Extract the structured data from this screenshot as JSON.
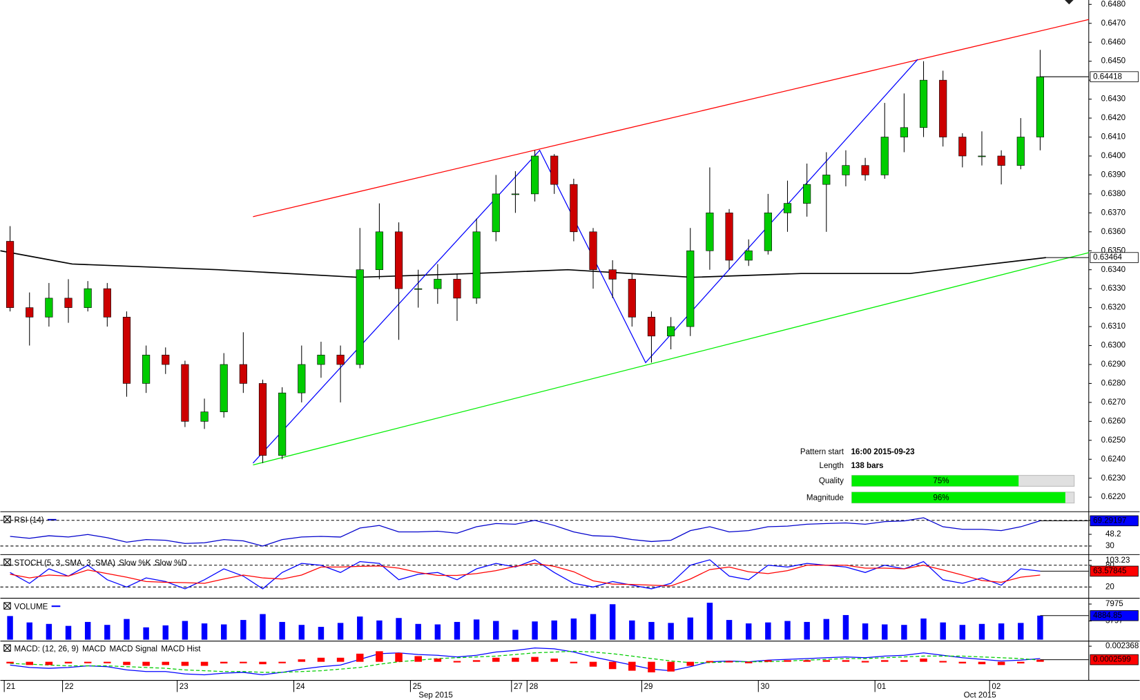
{
  "chart_data": [
    {
      "type": "candlestick",
      "up_color": "#00cc00",
      "down_color": "#cc0000",
      "xlim": [
        0,
        56
      ],
      "ylim": [
        0.62127,
        0.64823
      ],
      "yticks": [
        {
          "value": 0.622,
          "label": "0.6220"
        },
        {
          "value": 0.623,
          "label": "0.6230"
        },
        {
          "value": 0.624,
          "label": "0.6240"
        },
        {
          "value": 0.625,
          "label": "0.6250"
        },
        {
          "value": 0.626,
          "label": "0.6260"
        },
        {
          "value": 0.627,
          "label": "0.6270"
        },
        {
          "value": 0.628,
          "label": "0.6280"
        },
        {
          "value": 0.629,
          "label": "0.6290"
        },
        {
          "value": 0.63,
          "label": "0.6300"
        },
        {
          "value": 0.631,
          "label": "0.6310"
        },
        {
          "value": 0.632,
          "label": "0.6320"
        },
        {
          "value": 0.633,
          "label": "0.6330"
        },
        {
          "value": 0.634,
          "label": "0.6340"
        },
        {
          "value": 0.635,
          "label": "0.6350"
        },
        {
          "value": 0.636,
          "label": "0.6360"
        },
        {
          "value": 0.637,
          "label": "0.6370"
        },
        {
          "value": 0.638,
          "label": "0.6380"
        },
        {
          "value": 0.639,
          "label": "0.6390"
        },
        {
          "value": 0.64,
          "label": "0.6400"
        },
        {
          "value": 0.641,
          "label": "0.6410"
        },
        {
          "value": 0.642,
          "label": "0.6420"
        },
        {
          "value": 0.643,
          "label": "0.6430"
        },
        {
          "value": 0.644,
          "label": "0.6440"
        },
        {
          "value": 0.645,
          "label": "0.6450"
        },
        {
          "value": 0.646,
          "label": "0.6460"
        },
        {
          "value": 0.647,
          "label": "0.6470"
        },
        {
          "value": 0.648,
          "label": "0.6480"
        }
      ],
      "xticks": [
        {
          "value": 0.2,
          "label": "21"
        },
        {
          "value": 3.2,
          "label": "22"
        },
        {
          "value": 9.1,
          "label": "23"
        },
        {
          "value": 15.1,
          "label": "24"
        },
        {
          "value": 21.1,
          "label": "25"
        },
        {
          "value": 26.3,
          "label": "27"
        },
        {
          "value": 27.1,
          "label": "28"
        },
        {
          "value": 33.0,
          "label": "29"
        },
        {
          "value": 39.0,
          "label": "30"
        },
        {
          "value": 45.0,
          "label": "01"
        },
        {
          "value": 50.9,
          "label": "02"
        }
      ],
      "month_labels": [
        {
          "value": 22.4,
          "label": "Sep 2015"
        },
        {
          "value": 50.4,
          "label": "Oct 2015"
        }
      ],
      "open": [
        0.6355,
        0.632,
        0.6315,
        0.6325,
        0.632,
        0.633,
        0.6315,
        0.628,
        0.6295,
        0.629,
        0.626,
        0.6265,
        0.629,
        0.628,
        0.6242,
        0.6275,
        0.629,
        0.6295,
        0.629,
        0.634,
        0.636,
        0.633,
        0.633,
        0.6335,
        0.6325,
        0.636,
        0.638,
        0.638,
        0.64,
        0.6385,
        0.636,
        0.634,
        0.6335,
        0.6315,
        0.6305,
        0.631,
        0.635,
        0.637,
        0.6345,
        0.635,
        0.637,
        0.6375,
        0.6385,
        0.639,
        0.6395,
        0.639,
        0.641,
        0.6415,
        0.644,
        0.641,
        0.64,
        0.64,
        0.6395,
        0.641
      ],
      "high": [
        0.6363,
        0.6328,
        0.6333,
        0.6335,
        0.6334,
        0.6333,
        0.6318,
        0.63,
        0.6299,
        0.6292,
        0.6272,
        0.6296,
        0.6307,
        0.6282,
        0.6278,
        0.63,
        0.6302,
        0.63,
        0.6362,
        0.6375,
        0.6365,
        0.634,
        0.6343,
        0.6338,
        0.6367,
        0.639,
        0.6392,
        0.6403,
        0.6401,
        0.6388,
        0.6362,
        0.6345,
        0.6338,
        0.6318,
        0.6315,
        0.6362,
        0.6394,
        0.6372,
        0.6356,
        0.638,
        0.6387,
        0.6396,
        0.6402,
        0.6403,
        0.6399,
        0.6428,
        0.6433,
        0.645,
        0.6445,
        0.6412,
        0.6413,
        0.6403,
        0.642,
        0.6456
      ],
      "low": [
        0.6318,
        0.63,
        0.631,
        0.6312,
        0.6318,
        0.631,
        0.6273,
        0.6275,
        0.6285,
        0.6257,
        0.6256,
        0.6262,
        0.6275,
        0.6238,
        0.624,
        0.627,
        0.6283,
        0.627,
        0.6288,
        0.6335,
        0.6303,
        0.632,
        0.6322,
        0.6313,
        0.6322,
        0.6355,
        0.637,
        0.6376,
        0.638,
        0.6355,
        0.633,
        0.6325,
        0.631,
        0.6291,
        0.6298,
        0.6305,
        0.634,
        0.634,
        0.6342,
        0.6348,
        0.636,
        0.6368,
        0.636,
        0.6384,
        0.6387,
        0.6388,
        0.6402,
        0.641,
        0.6405,
        0.6394,
        0.6395,
        0.6385,
        0.6393,
        0.6403
      ],
      "close": [
        0.632,
        0.6315,
        0.6325,
        0.632,
        0.633,
        0.6315,
        0.628,
        0.6295,
        0.629,
        0.626,
        0.6265,
        0.629,
        0.628,
        0.6242,
        0.6275,
        0.629,
        0.6295,
        0.629,
        0.634,
        0.636,
        0.633,
        0.633,
        0.6335,
        0.6325,
        0.636,
        0.638,
        0.638,
        0.64,
        0.6385,
        0.636,
        0.634,
        0.6335,
        0.6315,
        0.6305,
        0.631,
        0.635,
        0.637,
        0.6345,
        0.635,
        0.637,
        0.6375,
        0.6385,
        0.639,
        0.6395,
        0.639,
        0.641,
        0.6415,
        0.644,
        0.641,
        0.64,
        0.64,
        0.6395,
        0.641,
        0.64418
      ],
      "ma": {
        "color": "#000000",
        "x": [
          0,
          3.7,
          11.2,
          18.4,
          24.3,
          29.2,
          35.6,
          41.2,
          46.8,
          53.8
        ],
        "values": [
          0.635,
          0.6343,
          0.634,
          0.6336,
          0.6338,
          0.634,
          0.6336,
          0.6338,
          0.6338,
          0.63464
        ]
      },
      "lines": [
        {
          "color": "#ff0000",
          "x": [
            13,
            56
          ],
          "values": [
            0.6368,
            0.6472
          ]
        },
        {
          "color": "#00ee00",
          "x": [
            13,
            56
          ],
          "values": [
            0.6237,
            0.6349
          ]
        },
        {
          "color": "#0000ff",
          "x": [
            13,
            27.75,
            33.2,
            47.2
          ],
          "values": [
            0.6238,
            0.6403,
            0.6291,
            0.6451
          ]
        }
      ],
      "pattern": {
        "fields": [
          {
            "label": "Pattern start",
            "value": "16:00 2015-09-23"
          },
          {
            "label": "Length",
            "value": "138 bars"
          }
        ],
        "xlim": [
          0,
          100
        ],
        "bars": [
          {
            "label": "Quality",
            "value": 75,
            "value_label": "75%"
          },
          {
            "label": "Magnitude",
            "value": 96,
            "value_label": "96%"
          }
        ]
      }
    },
    {
      "type": "line",
      "title": "RSI (14)",
      "color": "#0000cc",
      "ylim": [
        20,
        80
      ],
      "yticks": [
        30,
        48.2,
        70
      ],
      "levels": [
        30,
        70
      ],
      "values": [
        45,
        42,
        46,
        44,
        48,
        43,
        36,
        40,
        39,
        34,
        35,
        40,
        38,
        30,
        40,
        44,
        45,
        44,
        58,
        62,
        52,
        52,
        53,
        50,
        60,
        65,
        64,
        70,
        62,
        52,
        46,
        45,
        40,
        37,
        39,
        54,
        60,
        52,
        54,
        60,
        61,
        64,
        65,
        66,
        64,
        68,
        69,
        74,
        60,
        56,
        56,
        54,
        60,
        69.29197
      ]
    },
    {
      "type": "line",
      "title": "STOCH (5, 3, SMA, 3, SMA)",
      "ylim": [
        -5,
        103.23
      ],
      "yticks": [
        20,
        80,
        103.23
      ],
      "levels": [
        20,
        80
      ],
      "series": [
        {
          "name": "Slow %K",
          "color": "#0000ff",
          "values": [
            60,
            30,
            70,
            50,
            80,
            40,
            20,
            45,
            35,
            15,
            40,
            70,
            50,
            15,
            60,
            85,
            80,
            60,
            90,
            85,
            40,
            55,
            60,
            40,
            70,
            85,
            75,
            95,
            60,
            30,
            20,
            35,
            25,
            15,
            30,
            80,
            95,
            50,
            40,
            80,
            75,
            85,
            80,
            75,
            60,
            80,
            70,
            90,
            40,
            30,
            45,
            25,
            70,
            63.57845
          ]
        },
        {
          "name": "Slow %D",
          "color": "#ff0000",
          "values": [
            55,
            45,
            53,
            50,
            67,
            57,
            47,
            35,
            33,
            32,
            30,
            42,
            53,
            45,
            42,
            53,
            75,
            75,
            77,
            78,
            72,
            60,
            52,
            52,
            57,
            65,
            77,
            85,
            77,
            62,
            37,
            28,
            27,
            25,
            23,
            42,
            68,
            75,
            62,
            57,
            65,
            80,
            80,
            80,
            72,
            72,
            70,
            80,
            67,
            53,
            38,
            33,
            47,
            53
          ]
        }
      ]
    },
    {
      "type": "bar",
      "title": "VOLUME",
      "color": "#0000ff",
      "ylim": [
        0,
        7975
      ],
      "yticks": [
        3797,
        7975
      ],
      "values": [
        4800,
        3500,
        3200,
        2800,
        3600,
        3000,
        4200,
        2500,
        2900,
        3800,
        3300,
        3100,
        4000,
        5200,
        3600,
        3000,
        2600,
        3400,
        4700,
        3900,
        4400,
        3200,
        3100,
        3600,
        4100,
        3800,
        2000,
        3700,
        3900,
        4300,
        5200,
        7200,
        3900,
        3600,
        3400,
        4500,
        7500,
        4000,
        3300,
        3500,
        3800,
        3600,
        4200,
        5000,
        3300,
        3100,
        3000,
        4300,
        3500,
        3000,
        3200,
        3300,
        3400,
        4884.85
      ]
    },
    {
      "type": "line",
      "title": "MACD: (12, 26, 9)",
      "ylim": [
        -0.0022,
        0.002368
      ],
      "yticks": [
        0.002368
      ],
      "series": [
        {
          "name": "MACD",
          "color": "#0000ff",
          "values": [
            -0.0004,
            -0.0007,
            -0.0008,
            -0.0007,
            -0.0005,
            -0.0006,
            -0.001,
            -0.0012,
            -0.0012,
            -0.0015,
            -0.0016,
            -0.0014,
            -0.0013,
            -0.0016,
            -0.0013,
            -0.0009,
            -0.0006,
            -0.0004,
            0.0003,
            0.001,
            0.0011,
            0.0009,
            0.0008,
            0.0006,
            0.0008,
            0.0012,
            0.0014,
            0.0017,
            0.0016,
            0.0012,
            0.0006,
            0.0001,
            -0.0004,
            -0.0009,
            -0.0011,
            -0.0006,
            0.0,
            0.0001,
            0.0,
            0.0002,
            0.0003,
            0.0004,
            0.0005,
            0.0006,
            0.0005,
            0.0007,
            0.0008,
            0.0011,
            0.0008,
            0.0005,
            0.0003,
            0.0001,
            0.0002,
            0.0004
          ]
        },
        {
          "name": "MACD Signal",
          "color": "#00cc00",
          "dash": true,
          "values": [
            -0.0002,
            -0.0003,
            -0.0004,
            -0.0005,
            -0.0005,
            -0.0005,
            -0.0006,
            -0.0007,
            -0.0008,
            -0.001,
            -0.0011,
            -0.0012,
            -0.0012,
            -0.0013,
            -0.0013,
            -0.0012,
            -0.0011,
            -0.0009,
            -0.0007,
            -0.0003,
            0.0,
            0.0002,
            0.0004,
            0.0005,
            0.0006,
            0.0007,
            0.0009,
            0.0011,
            0.0012,
            0.0013,
            0.0012,
            0.001,
            0.0007,
            0.0004,
            0.0001,
            -0.0001,
            -0.0001,
            0.0,
            0.0,
            0.0,
            0.0001,
            0.0002,
            0.0003,
            0.0004,
            0.0004,
            0.0005,
            0.0006,
            0.0007,
            0.0007,
            0.0007,
            0.0006,
            0.0005,
            0.0004,
            0.0002
          ]
        },
        {
          "name": "MACD Hist",
          "color": "#ff0000",
          "style": "bar",
          "values": [
            -0.0002,
            -0.0004,
            -0.0004,
            -0.0002,
            0.0,
            -0.0001,
            -0.0004,
            -0.0005,
            -0.0004,
            -0.0005,
            -0.0005,
            -0.0002,
            -0.0001,
            -0.0003,
            0.0,
            0.0003,
            0.0005,
            0.0005,
            0.001,
            0.0013,
            0.0011,
            0.0007,
            0.0004,
            0.0001,
            0.0002,
            0.0005,
            0.0005,
            0.0006,
            0.0004,
            -0.0001,
            -0.0006,
            -0.0009,
            -0.0011,
            -0.0013,
            -0.0012,
            -0.0005,
            0.0001,
            0.0001,
            0.0,
            0.0002,
            0.0002,
            0.0002,
            0.0002,
            0.0002,
            0.0001,
            0.0002,
            0.0002,
            0.0004,
            0.0001,
            -0.0002,
            -0.0003,
            -0.0004,
            -0.0002,
            0.0002599
          ]
        }
      ]
    }
  ]
}
